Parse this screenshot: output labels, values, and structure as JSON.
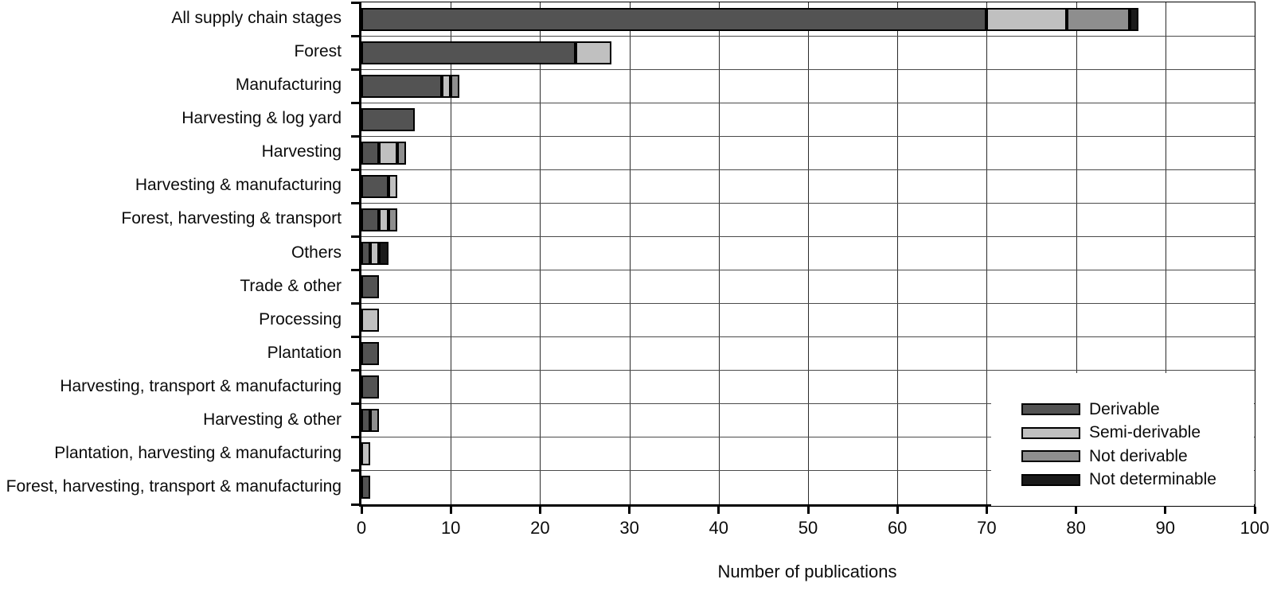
{
  "chart_data": {
    "type": "bar",
    "orientation": "horizontal",
    "stacked": true,
    "title": "",
    "xlabel": "Number of publications",
    "ylabel": "",
    "xlim": [
      0,
      100
    ],
    "xticks": [
      0,
      10,
      20,
      30,
      40,
      50,
      60,
      70,
      80,
      90,
      100
    ],
    "grid": "on",
    "legend_position": "bottom-right",
    "categories": [
      "All supply chain stages",
      "Forest",
      "Manufacturing",
      "Harvesting & log yard",
      "Harvesting",
      "Harvesting & manufacturing",
      "Forest, harvesting & transport",
      "Others",
      "Trade & other",
      "Processing",
      "Plantation",
      "Harvesting, transport & manufacturing",
      "Harvesting & other",
      "Plantation, harvesting & manufacturing",
      "Forest, harvesting, transport & manufacturing"
    ],
    "series": [
      {
        "name": "Derivable",
        "color": "#535353",
        "values": [
          70,
          24,
          9,
          6,
          2,
          3,
          2,
          1,
          2,
          0,
          2,
          2,
          1,
          0,
          1
        ]
      },
      {
        "name": "Semi-derivable",
        "color": "#c0c0c0",
        "values": [
          9,
          4,
          1,
          0,
          2,
          1,
          1,
          1,
          0,
          2,
          0,
          0,
          0,
          1,
          0
        ]
      },
      {
        "name": "Not derivable",
        "color": "#8e8e8e",
        "values": [
          7,
          0,
          1,
          0,
          1,
          0,
          1,
          0,
          0,
          0,
          0,
          0,
          1,
          0,
          0
        ]
      },
      {
        "name": "Not determinable",
        "color": "#1a1a1a",
        "values": [
          1,
          0,
          0,
          0,
          0,
          0,
          0,
          1,
          0,
          0,
          0,
          0,
          0,
          0,
          0
        ]
      }
    ]
  }
}
